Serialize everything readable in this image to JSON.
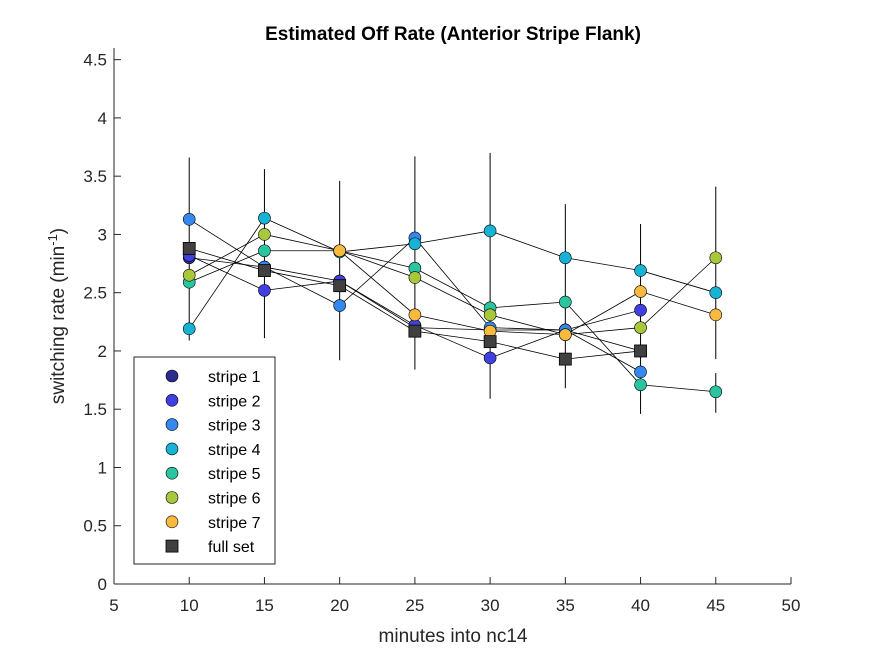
{
  "chart_data": {
    "type": "line",
    "title": "Estimated Off Rate (Anterior Stripe Flank)",
    "xlabel": "minutes into nc14",
    "ylabel_main": "switching rate (min",
    "ylabel_sup": "-1",
    "ylabel_close": ")",
    "xlim": [
      5,
      50
    ],
    "ylim": [
      0,
      4.6
    ],
    "xticks": [
      5,
      10,
      15,
      20,
      25,
      30,
      35,
      40,
      45,
      50
    ],
    "yticks": [
      0,
      0.5,
      1,
      1.5,
      2,
      2.5,
      3,
      3.5,
      4,
      4.5
    ],
    "xtick_labels": [
      "5",
      "10",
      "15",
      "20",
      "25",
      "30",
      "35",
      "40",
      "45",
      "50"
    ],
    "ytick_labels": [
      "0",
      "0.5",
      "1",
      "1.5",
      "2",
      "2.5",
      "3",
      "3.5",
      "4",
      "4.5"
    ],
    "grid": false,
    "legend_position": "bottom-left",
    "series": [
      {
        "name": "stripe 1",
        "color": "#2c2c8c",
        "marker": "circle",
        "x": [
          10,
          15,
          20,
          25,
          30,
          35,
          40
        ],
        "y": [
          2.8,
          2.72,
          2.6,
          2.2,
          2.18,
          2.18,
          2.0
        ]
      },
      {
        "name": "stripe 2",
        "color": "#4040e0",
        "marker": "circle",
        "x": [
          10,
          15,
          20,
          25,
          30,
          35,
          40
        ],
        "y": [
          2.82,
          2.52,
          2.6,
          2.22,
          1.94,
          2.18,
          2.35
        ]
      },
      {
        "name": "stripe 3",
        "color": "#3488ee",
        "marker": "circle",
        "x": [
          10,
          15,
          20,
          25,
          30,
          35,
          40
        ],
        "y": [
          3.13,
          2.72,
          2.39,
          2.97,
          2.2,
          2.18,
          1.82
        ]
      },
      {
        "name": "stripe 4",
        "color": "#17b2d4",
        "marker": "circle",
        "x": [
          10,
          15,
          20,
          25,
          30,
          35,
          40,
          45
        ],
        "y": [
          2.19,
          3.14,
          2.85,
          2.92,
          3.03,
          2.8,
          2.69,
          2.5
        ]
      },
      {
        "name": "stripe 5",
        "color": "#2bc4a0",
        "marker": "circle",
        "x": [
          10,
          15,
          20,
          25,
          30,
          35,
          40,
          45
        ],
        "y": [
          2.59,
          2.86,
          2.86,
          2.71,
          2.37,
          2.42,
          1.71,
          1.65
        ]
      },
      {
        "name": "stripe 6",
        "color": "#a8c83c",
        "marker": "circle",
        "x": [
          10,
          15,
          20,
          25,
          30,
          35,
          40,
          45
        ],
        "y": [
          2.65,
          3.0,
          2.86,
          2.63,
          2.31,
          2.14,
          2.2,
          2.8
        ]
      },
      {
        "name": "stripe 7",
        "color": "#f7ba3e",
        "marker": "circle",
        "x": [
          20,
          25,
          30,
          35,
          40,
          45
        ],
        "y": [
          2.86,
          2.31,
          2.17,
          2.14,
          2.51,
          2.31
        ]
      },
      {
        "name": "full set",
        "color": "#404040",
        "marker": "square",
        "x": [
          10,
          15,
          20,
          25,
          30,
          35,
          40
        ],
        "y": [
          2.88,
          2.69,
          2.56,
          2.17,
          2.08,
          1.93,
          2.0
        ]
      }
    ],
    "error_bars": [
      {
        "x": 10,
        "low": 2.09,
        "high": 3.66
      },
      {
        "x": 15,
        "low": 2.11,
        "high": 3.56
      },
      {
        "x": 20,
        "low": 1.92,
        "high": 3.46
      },
      {
        "x": 25,
        "low": 1.84,
        "high": 3.67
      },
      {
        "x": 30,
        "low": 1.59,
        "high": 3.7
      },
      {
        "x": 35,
        "low": 1.68,
        "high": 3.26
      },
      {
        "x": 40,
        "low": 1.46,
        "high": 3.09
      },
      {
        "x": 45,
        "low": 1.93,
        "high": 3.41
      },
      {
        "x": 45,
        "low": 1.47,
        "high": 1.81
      }
    ]
  }
}
